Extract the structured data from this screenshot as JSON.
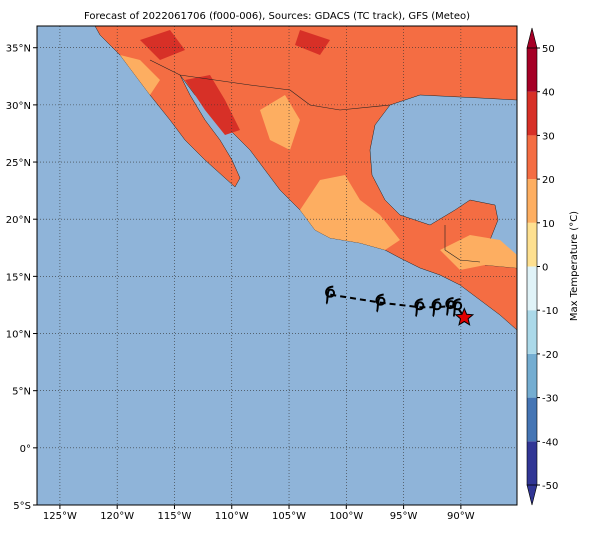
{
  "chart_data": {
    "type": "map",
    "title": "Forecast of 2022061706 (f000-006), Sources: GDACS (TC track), GFS (Meteo)",
    "xlim": [
      -127,
      -85.1
    ],
    "ylim": [
      -5,
      36.9
    ],
    "xticks": [
      {
        "value": -125,
        "label": "125°W"
      },
      {
        "value": -120,
        "label": "120°W"
      },
      {
        "value": -115,
        "label": "115°W"
      },
      {
        "value": -110,
        "label": "110°W"
      },
      {
        "value": -105,
        "label": "105°W"
      },
      {
        "value": -100,
        "label": "100°W"
      },
      {
        "value": -95,
        "label": "95°W"
      },
      {
        "value": -90,
        "label": "90°W"
      }
    ],
    "yticks": [
      {
        "value": -5,
        "label": "5°S"
      },
      {
        "value": 0,
        "label": "0°"
      },
      {
        "value": 5,
        "label": "5°N"
      },
      {
        "value": 10,
        "label": "10°N"
      },
      {
        "value": 15,
        "label": "15°N"
      },
      {
        "value": 20,
        "label": "20°N"
      },
      {
        "value": 25,
        "label": "25°N"
      },
      {
        "value": 30,
        "label": "30°N"
      },
      {
        "value": 35,
        "label": "35°N"
      }
    ],
    "grid": true,
    "track": {
      "lon": [
        -101.4,
        -97.0,
        -93.6,
        -92.1,
        -90.9,
        -90.3,
        -89.7
      ],
      "lat": [
        13.4,
        12.7,
        12.3,
        12.3,
        12.4,
        12.3,
        11.4
      ],
      "color": "#000000",
      "current_color": "#e00000"
    },
    "colorbar": {
      "label": "Max Temperature (°C)",
      "lim": [
        -50,
        50
      ],
      "ticks": [
        -50,
        -40,
        -30,
        -20,
        -10,
        0,
        10,
        20,
        30,
        40,
        50
      ],
      "colors": [
        "#313695",
        "#4575b4",
        "#74add1",
        "#abd9e9",
        "#e0f3f8",
        "#fee090",
        "#fdae61",
        "#f46d43",
        "#d73027",
        "#a50026"
      ]
    }
  }
}
